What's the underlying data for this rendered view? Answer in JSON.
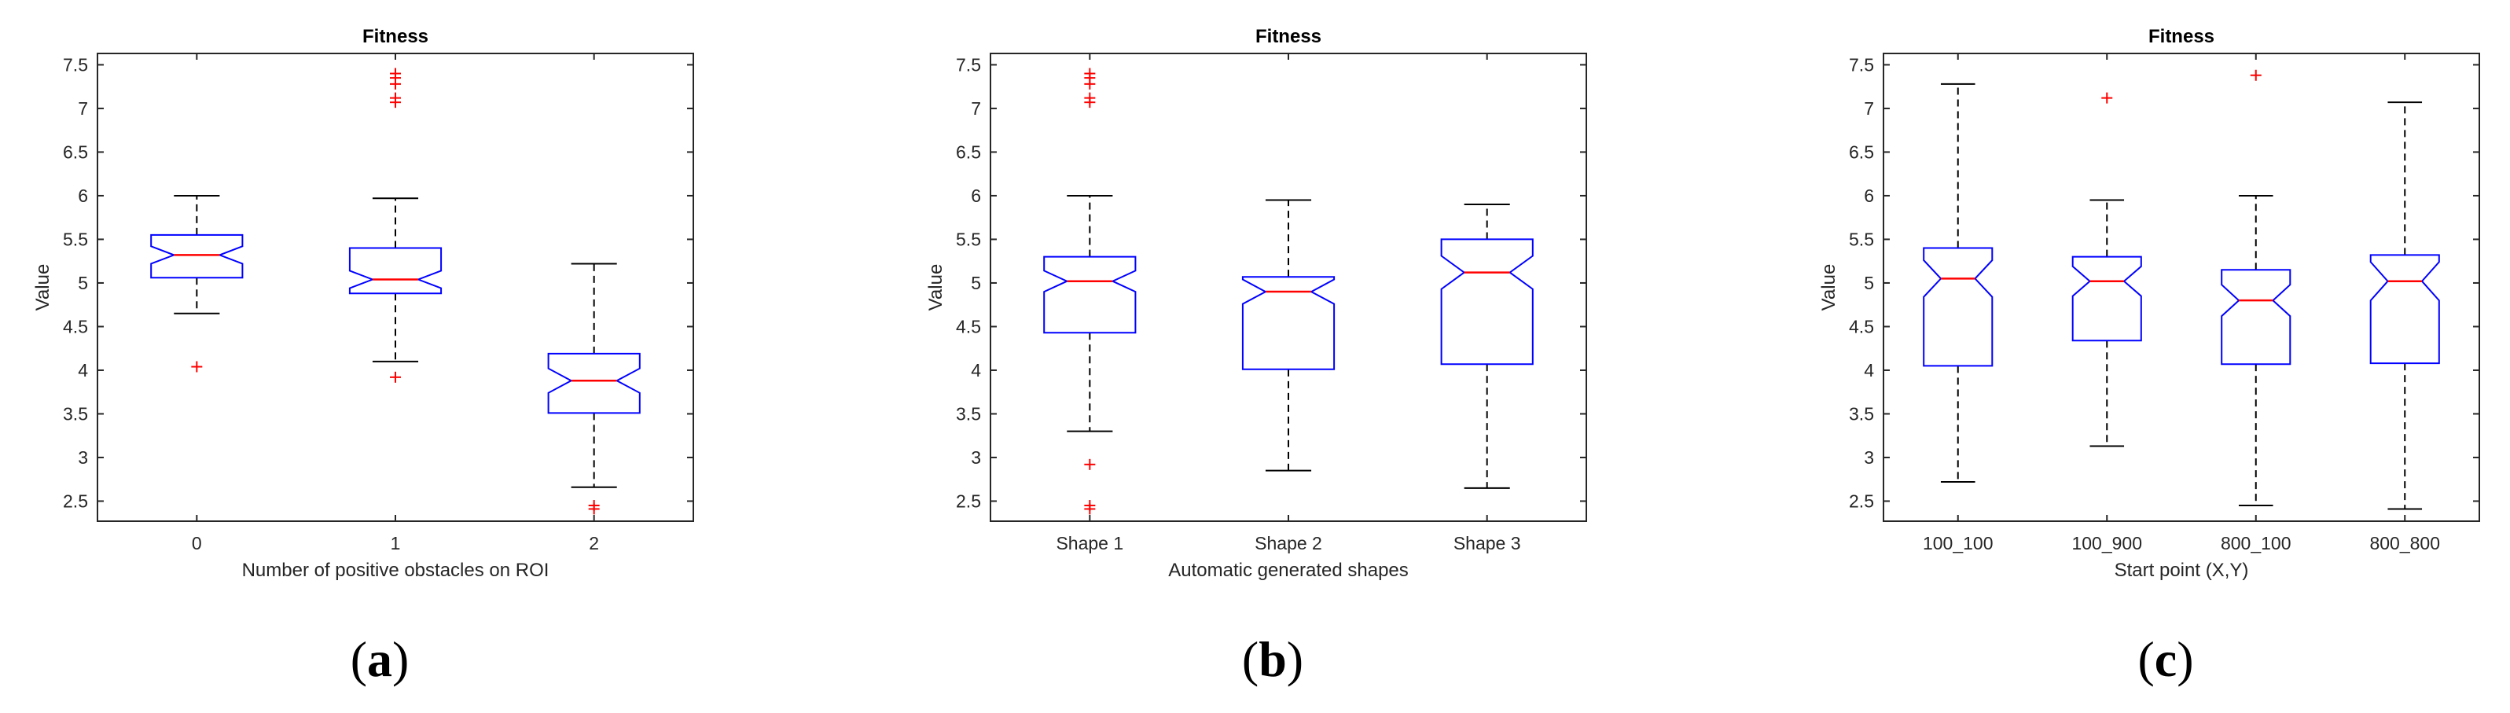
{
  "chart_data": [
    {
      "type": "boxplot",
      "panel": "(a)",
      "panel_letter": "a",
      "title": "Fitness",
      "xlabel": "Number of positive obstacles on ROI",
      "ylabel": "Value",
      "ylim": [
        2.27,
        7.63
      ],
      "yticks": [
        "2.5",
        "3",
        "3.5",
        "4",
        "4.5",
        "5",
        "5.5",
        "6",
        "6.5",
        "7",
        "7.5"
      ],
      "notched": true,
      "colors": {
        "box": "#0000ff",
        "median": "#ff0000",
        "whisker": "#000000",
        "outlier": "#ff0000",
        "axes": "#262626"
      },
      "categories": [
        "0",
        "1",
        "2"
      ],
      "boxes": [
        {
          "q1": 5.06,
          "median": 5.32,
          "q3": 5.55,
          "whisker_low": 4.65,
          "whisker_high": 6.0,
          "notch_low": 5.22,
          "notch_high": 5.42,
          "outliers": [
            4.04
          ]
        },
        {
          "q1": 4.88,
          "median": 5.04,
          "q3": 5.4,
          "whisker_low": 4.1,
          "whisker_high": 5.97,
          "notch_low": 4.94,
          "notch_high": 5.14,
          "outliers": [
            3.92,
            7.07,
            7.12,
            7.28,
            7.35,
            7.4
          ]
        },
        {
          "q1": 3.51,
          "median": 3.88,
          "q3": 4.19,
          "whisker_low": 2.66,
          "whisker_high": 5.22,
          "notch_low": 3.74,
          "notch_high": 4.02,
          "outliers": [
            2.41,
            2.45
          ]
        }
      ]
    },
    {
      "type": "boxplot",
      "panel": "(b)",
      "panel_letter": "b",
      "title": "Fitness",
      "xlabel": "Automatic generated shapes",
      "ylabel": "Value",
      "ylim": [
        2.27,
        7.63
      ],
      "yticks": [
        "2.5",
        "3",
        "3.5",
        "4",
        "4.5",
        "5",
        "5.5",
        "6",
        "6.5",
        "7",
        "7.5"
      ],
      "notched": true,
      "colors": {
        "box": "#0000ff",
        "median": "#ff0000",
        "whisker": "#000000",
        "outlier": "#ff0000",
        "axes": "#262626"
      },
      "categories": [
        "Shape 1",
        "Shape 2",
        "Shape 3"
      ],
      "boxes": [
        {
          "q1": 4.43,
          "median": 5.02,
          "q3": 5.3,
          "whisker_low": 3.3,
          "whisker_high": 6.0,
          "notch_low": 4.9,
          "notch_high": 5.14,
          "outliers": [
            2.41,
            2.45,
            2.92,
            7.07,
            7.12,
            7.28,
            7.35,
            7.4
          ]
        },
        {
          "q1": 4.01,
          "median": 4.9,
          "q3": 5.07,
          "whisker_low": 2.85,
          "whisker_high": 5.95,
          "notch_low": 4.76,
          "notch_high": 5.04,
          "outliers": []
        },
        {
          "q1": 4.07,
          "median": 5.12,
          "q3": 5.5,
          "whisker_low": 2.65,
          "whisker_high": 5.9,
          "notch_low": 4.93,
          "notch_high": 5.31,
          "outliers": []
        }
      ]
    },
    {
      "type": "boxplot",
      "panel": "(c)",
      "panel_letter": "c",
      "title": "Fitness",
      "xlabel": "Start point (X,Y)",
      "ylabel": "Value",
      "ylim": [
        2.27,
        7.63
      ],
      "yticks": [
        "2.5",
        "3",
        "3.5",
        "4",
        "4.5",
        "5",
        "5.5",
        "6",
        "6.5",
        "7",
        "7.5"
      ],
      "notched": true,
      "colors": {
        "box": "#0000ff",
        "median": "#ff0000",
        "whisker": "#000000",
        "outlier": "#ff0000",
        "axes": "#262626"
      },
      "categories": [
        "100_100",
        "100_900",
        "800_100",
        "800_800"
      ],
      "boxes": [
        {
          "q1": 4.05,
          "median": 5.05,
          "q3": 5.4,
          "whisker_low": 2.72,
          "whisker_high": 7.28,
          "notch_low": 4.84,
          "notch_high": 5.26,
          "outliers": []
        },
        {
          "q1": 4.34,
          "median": 5.02,
          "q3": 5.3,
          "whisker_low": 3.13,
          "whisker_high": 5.95,
          "notch_low": 4.85,
          "notch_high": 5.19,
          "outliers": [
            7.12
          ]
        },
        {
          "q1": 4.07,
          "median": 4.8,
          "q3": 5.15,
          "whisker_low": 2.45,
          "whisker_high": 6.0,
          "notch_low": 4.62,
          "notch_high": 4.98,
          "outliers": [
            7.38
          ]
        },
        {
          "q1": 4.08,
          "median": 5.02,
          "q3": 5.32,
          "whisker_low": 2.41,
          "whisker_high": 7.07,
          "notch_low": 4.8,
          "notch_high": 5.24,
          "outliers": []
        }
      ]
    }
  ]
}
